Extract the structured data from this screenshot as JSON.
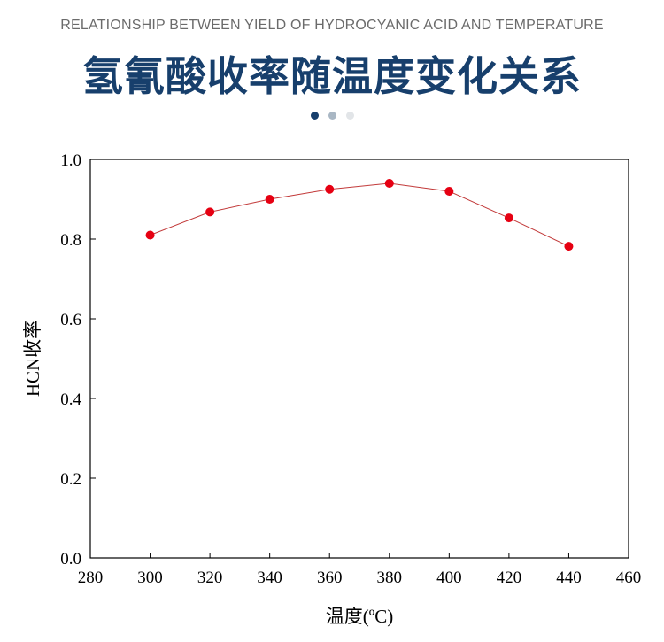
{
  "header": {
    "subtitle": "RELATIONSHIP BETWEEN YIELD OF HYDROCYANIC ACID AND TEMPERATURE",
    "title": "氢氰酸收率随温度变化关系"
  },
  "pager": {
    "dots": [
      "#173f6c",
      "#a9b7c4",
      "#e2e5e8"
    ]
  },
  "colors": {
    "series_line": "#c23a3a",
    "marker": "#e60012"
  },
  "chart_data": {
    "type": "line",
    "title": "",
    "xlabel": "温度(ºC)",
    "ylabel": "HCN收率",
    "xlim": [
      280,
      460
    ],
    "ylim": [
      0.0,
      1.0
    ],
    "x_ticks": [
      "280",
      "300",
      "320",
      "340",
      "360",
      "380",
      "400",
      "420",
      "440",
      "460"
    ],
    "y_ticks": [
      "0.0",
      "0.2",
      "0.4",
      "0.6",
      "0.8",
      "1.0"
    ],
    "grid": false,
    "legend": "none",
    "series": [
      {
        "x": [
          300,
          320,
          340,
          360,
          380,
          400,
          420,
          440
        ],
        "values": [
          0.81,
          0.868,
          0.9,
          0.925,
          0.94,
          0.92,
          0.853,
          0.782
        ]
      }
    ]
  }
}
